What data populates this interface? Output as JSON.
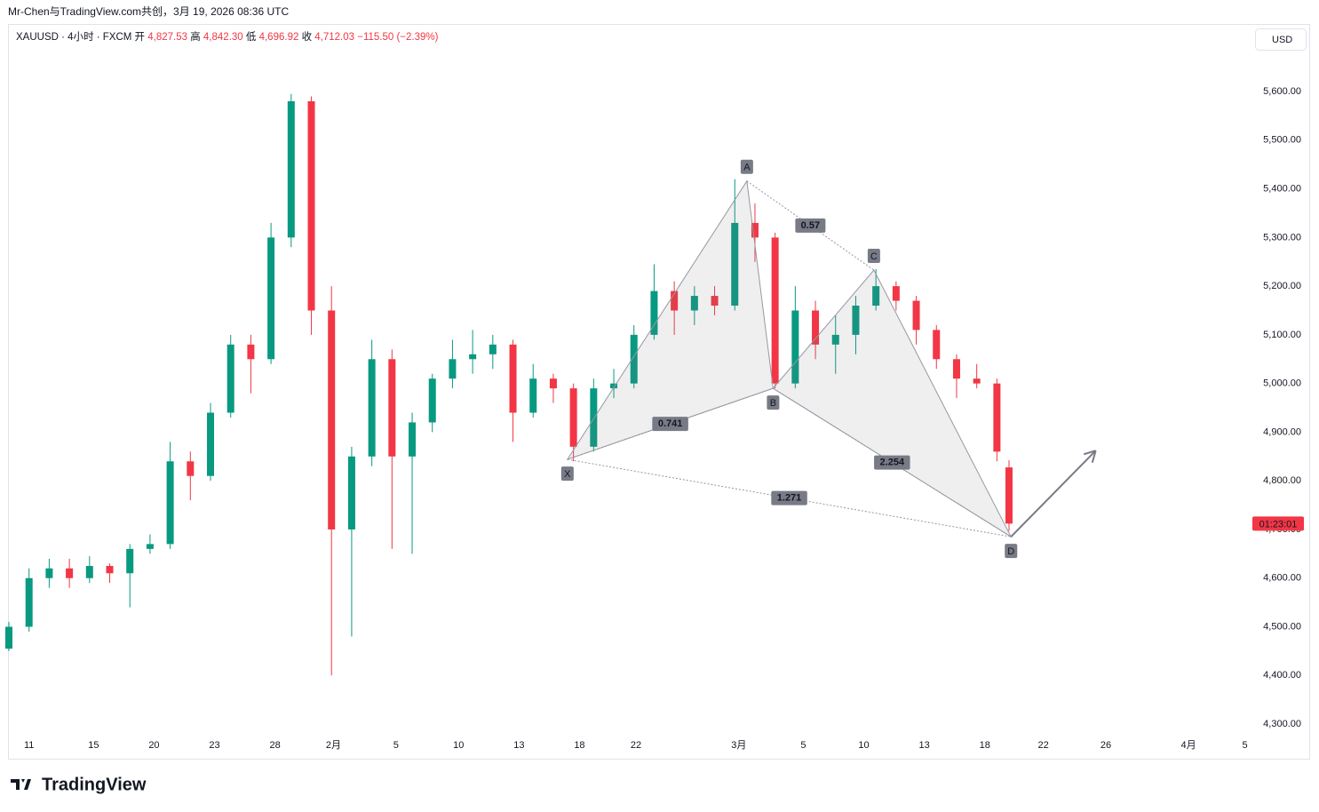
{
  "watermark": "Mr-Chen与TradingView.com共创，3月 19, 2026 08:36 UTC",
  "footer_logo": "TradingView",
  "currency_button": "USD",
  "chart_data": {
    "type": "candlestick",
    "header": {
      "symbol": "XAUUSD · 4小时 · FXCM",
      "ohlc": [
        {
          "label": "开",
          "value": "4,827.53"
        },
        {
          "label": "高",
          "value": "4,842.30"
        },
        {
          "label": "低",
          "value": "4,696.92"
        },
        {
          "label": "收",
          "value": "4,712.03"
        }
      ],
      "change": "−115.50 (−2.39%)"
    },
    "price_tag": {
      "value": 4712.03,
      "label": "01:23:01",
      "color": "#f23645"
    },
    "up_color": "#089981",
    "down_color": "#f23645",
    "x": [
      -1,
      0,
      1,
      2,
      3,
      4,
      5,
      6,
      7,
      8,
      9,
      10,
      11,
      12,
      13,
      14,
      15,
      16,
      17,
      18,
      19,
      20,
      21,
      22,
      23,
      24,
      25,
      26,
      27,
      28,
      29,
      30,
      31,
      32,
      33,
      34,
      35,
      36,
      37,
      38,
      39,
      40,
      41,
      42,
      43,
      44,
      45,
      46,
      47,
      48,
      48.6
    ],
    "open": [
      4455,
      4500,
      4600,
      4620,
      4600,
      4625,
      4610,
      4660,
      4670,
      4840,
      4810,
      4940,
      5080,
      5050,
      5300,
      5580,
      5150,
      4700,
      4850,
      5050,
      4850,
      4920,
      5010,
      5050,
      5060,
      5080,
      4940,
      5010,
      4990,
      4870,
      4990,
      5000,
      5100,
      5190,
      5150,
      5180,
      5160,
      5330,
      5300,
      5000,
      5150,
      5080,
      5100,
      5160,
      5200,
      5170,
      5110,
      5050,
      5010,
      5000,
      4827.53
    ],
    "high": [
      4510,
      4620,
      4640,
      4640,
      4645,
      4630,
      4670,
      4690,
      4880,
      4860,
      4960,
      5100,
      5100,
      5330,
      5595,
      5590,
      5200,
      4870,
      5090,
      5070,
      4940,
      5020,
      5090,
      5110,
      5100,
      5090,
      5040,
      5020,
      5000,
      5010,
      5030,
      5120,
      5245,
      5210,
      5200,
      5200,
      5420,
      5370,
      5310,
      5200,
      5170,
      5140,
      5180,
      5235,
      5210,
      5180,
      5120,
      5060,
      5040,
      5010,
      4842.3
    ],
    "low": [
      4450,
      4490,
      4580,
      4580,
      4590,
      4590,
      4540,
      4650,
      4660,
      4760,
      4800,
      4930,
      4980,
      5040,
      5280,
      5100,
      4400,
      4480,
      4830,
      4660,
      4650,
      4900,
      4990,
      5020,
      5030,
      4880,
      4930,
      4960,
      4840,
      4860,
      4970,
      4990,
      5090,
      5100,
      5120,
      5140,
      5150,
      5250,
      4990,
      4990,
      5050,
      5020,
      5060,
      5150,
      5150,
      5080,
      5030,
      4970,
      4990,
      4840,
      4696.92
    ],
    "close": [
      4500,
      4600,
      4620,
      4600,
      4625,
      4610,
      4660,
      4670,
      4840,
      4810,
      4940,
      5080,
      5050,
      5300,
      5580,
      5150,
      4700,
      4850,
      5050,
      4850,
      4920,
      5010,
      5050,
      5060,
      5080,
      4940,
      5010,
      4990,
      4870,
      4990,
      5000,
      5100,
      5190,
      5150,
      5180,
      5160,
      5330,
      5300,
      5000,
      5150,
      5080,
      5100,
      5160,
      5200,
      5170,
      5110,
      5050,
      5010,
      5000,
      4860,
      4712.03
    ],
    "xlim": [
      -1,
      60.45
    ],
    "xticks": [
      {
        "value": 0,
        "label": "11"
      },
      {
        "value": 3.2,
        "label": "15"
      },
      {
        "value": 6.2,
        "label": "20"
      },
      {
        "value": 9.2,
        "label": "23"
      },
      {
        "value": 12.2,
        "label": "28"
      },
      {
        "value": 15.1,
        "label": "2月"
      },
      {
        "value": 18.2,
        "label": "5"
      },
      {
        "value": 21.3,
        "label": "10"
      },
      {
        "value": 24.3,
        "label": "13"
      },
      {
        "value": 27.3,
        "label": "18"
      },
      {
        "value": 30.1,
        "label": "22"
      },
      {
        "value": 35.2,
        "label": "3月"
      },
      {
        "value": 38.4,
        "label": "5"
      },
      {
        "value": 41.4,
        "label": "10"
      },
      {
        "value": 44.4,
        "label": "13"
      },
      {
        "value": 47.4,
        "label": "18"
      },
      {
        "value": 50.3,
        "label": "22"
      },
      {
        "value": 53.4,
        "label": "26"
      },
      {
        "value": 57.5,
        "label": "4月"
      },
      {
        "value": 60.3,
        "label": "5"
      }
    ],
    "ylim": [
      4280,
      5737
    ],
    "yticks": [
      {
        "value": 5600,
        "label": "5,600.00"
      },
      {
        "value": 5500,
        "label": "5,500.00"
      },
      {
        "value": 5400,
        "label": "5,400.00"
      },
      {
        "value": 5300,
        "label": "5,300.00"
      },
      {
        "value": 5200,
        "label": "5,200.00"
      },
      {
        "value": 5100,
        "label": "5,100.00"
      },
      {
        "value": 5000,
        "label": "5,000.00"
      },
      {
        "value": 4900,
        "label": "4,900.00"
      },
      {
        "value": 4800,
        "label": "4,800.00"
      },
      {
        "value": 4700,
        "label": "4,700.00"
      },
      {
        "value": 4600,
        "label": "4,600.00"
      },
      {
        "value": 4500,
        "label": "4,500.00"
      },
      {
        "value": 4400,
        "label": "4,400.00"
      },
      {
        "value": 4300,
        "label": "4,300.00"
      }
    ],
    "grid": false,
    "pattern": {
      "points": [
        {
          "label": "X",
          "x": 26.7,
          "y": 4844
        },
        {
          "label": "A",
          "x": 35.6,
          "y": 5416
        },
        {
          "label": "B",
          "x": 36.9,
          "y": 4990
        },
        {
          "label": "C",
          "x": 41.9,
          "y": 5233
        },
        {
          "label": "D",
          "x": 48.7,
          "y": 4685
        }
      ],
      "ratios": [
        {
          "label": "0.741",
          "from": 0,
          "to": 2
        },
        {
          "label": "0.57",
          "from": 1,
          "to": 3
        },
        {
          "label": "2.254",
          "from": 2,
          "to": 4
        },
        {
          "label": "1.271",
          "from": 0,
          "to": 4
        }
      ],
      "arrow_to": {
        "x": 52.9,
        "y": 4862
      }
    }
  }
}
